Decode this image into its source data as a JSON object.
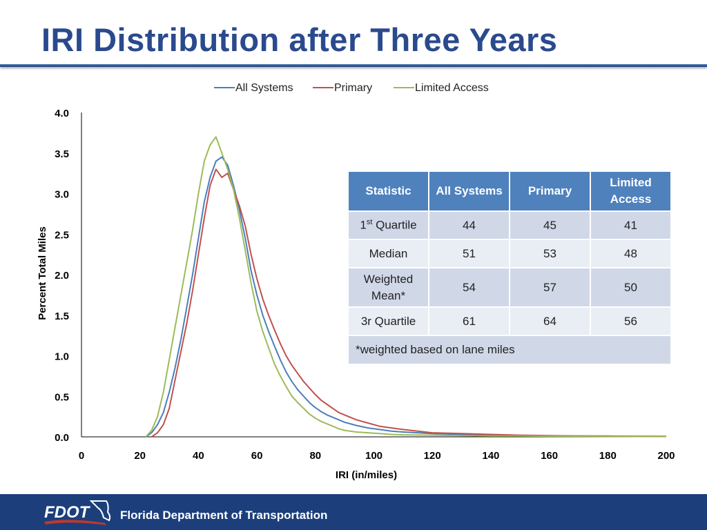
{
  "slide": {
    "title": "IRI Distribution after Three Years",
    "footer": "Florida Department of Transportation",
    "logo_text": "FDOT"
  },
  "colors": {
    "title": "#2a4a8d",
    "footer_bg": "#1c3f7c",
    "table_header": "#4f81bd",
    "table_row_odd": "#d0d8e8",
    "table_row_even": "#e9edf4"
  },
  "chart_data": {
    "type": "line",
    "title": "",
    "xlabel": "IRI (in/miles)",
    "ylabel": "Percent Total Miles",
    "xlim": [
      0,
      200
    ],
    "ylim": [
      0,
      4.0
    ],
    "xticks": [
      "0",
      "20",
      "40",
      "60",
      "80",
      "100",
      "120",
      "140",
      "160",
      "180",
      "200"
    ],
    "yticks": [
      "0.0",
      "0.5",
      "1.0",
      "1.5",
      "2.0",
      "2.5",
      "3.0",
      "3.5",
      "4.0"
    ],
    "grid": false,
    "legend": "top-center",
    "series": [
      {
        "name": "All Systems",
        "color": "#4a7ebb",
        "x": [
          22,
          24,
          26,
          28,
          30,
          32,
          34,
          36,
          38,
          40,
          42,
          44,
          46,
          48,
          50,
          52,
          54,
          56,
          58,
          60,
          62,
          64,
          66,
          68,
          70,
          72,
          74,
          76,
          78,
          80,
          82,
          84,
          86,
          88,
          90,
          94,
          98,
          102,
          106,
          110,
          115,
          120,
          130,
          140,
          150,
          160,
          170,
          180,
          190,
          200
        ],
        "y": [
          0.0,
          0.05,
          0.15,
          0.3,
          0.55,
          0.85,
          1.2,
          1.6,
          2.0,
          2.45,
          2.9,
          3.2,
          3.4,
          3.45,
          3.35,
          3.1,
          2.8,
          2.45,
          2.05,
          1.75,
          1.5,
          1.3,
          1.12,
          0.95,
          0.8,
          0.68,
          0.58,
          0.5,
          0.42,
          0.36,
          0.31,
          0.27,
          0.24,
          0.21,
          0.18,
          0.14,
          0.11,
          0.09,
          0.07,
          0.06,
          0.05,
          0.04,
          0.03,
          0.02,
          0.015,
          0.01,
          0.01,
          0.008,
          0.006,
          0.005
        ]
      },
      {
        "name": "Primary",
        "color": "#c0504d",
        "x": [
          24,
          26,
          28,
          30,
          32,
          34,
          36,
          38,
          40,
          42,
          44,
          46,
          48,
          50,
          52,
          54,
          56,
          58,
          60,
          62,
          64,
          66,
          68,
          70,
          72,
          74,
          76,
          78,
          80,
          82,
          84,
          86,
          88,
          90,
          94,
          98,
          102,
          106,
          110,
          115,
          120,
          130,
          140,
          150,
          160,
          170,
          180,
          190,
          200
        ],
        "y": [
          0.0,
          0.05,
          0.15,
          0.35,
          0.7,
          1.05,
          1.4,
          1.8,
          2.25,
          2.7,
          3.1,
          3.3,
          3.2,
          3.25,
          3.05,
          2.85,
          2.6,
          2.25,
          1.95,
          1.7,
          1.5,
          1.32,
          1.15,
          1.0,
          0.88,
          0.78,
          0.68,
          0.6,
          0.52,
          0.45,
          0.4,
          0.35,
          0.3,
          0.27,
          0.21,
          0.17,
          0.13,
          0.11,
          0.09,
          0.07,
          0.05,
          0.04,
          0.03,
          0.02,
          0.015,
          0.01,
          0.01,
          0.008,
          0.006
        ]
      },
      {
        "name": "Limited Access",
        "color": "#9bbb59",
        "x": [
          22,
          24,
          26,
          28,
          30,
          32,
          34,
          36,
          38,
          40,
          42,
          44,
          46,
          48,
          50,
          52,
          54,
          56,
          58,
          60,
          62,
          64,
          66,
          68,
          70,
          72,
          74,
          76,
          78,
          80,
          82,
          84,
          86,
          88,
          90,
          94,
          98,
          102,
          106,
          110,
          120,
          130,
          140,
          150,
          160,
          170,
          180,
          190,
          200
        ],
        "y": [
          0.0,
          0.08,
          0.25,
          0.55,
          0.95,
          1.35,
          1.75,
          2.15,
          2.55,
          3.0,
          3.4,
          3.6,
          3.7,
          3.5,
          3.3,
          3.05,
          2.7,
          2.3,
          1.9,
          1.55,
          1.3,
          1.1,
          0.9,
          0.75,
          0.62,
          0.5,
          0.42,
          0.35,
          0.28,
          0.23,
          0.19,
          0.16,
          0.13,
          0.1,
          0.08,
          0.06,
          0.05,
          0.04,
          0.03,
          0.025,
          0.02,
          0.015,
          0.01,
          0.01,
          0.008,
          0.006,
          0.005,
          0.004,
          0.003
        ]
      }
    ]
  },
  "stats_table": {
    "headers": [
      "Statistic",
      "All Systems",
      "Primary",
      "Limited Access"
    ],
    "rows": [
      {
        "label": "1",
        "label_sup": "st",
        "label_rest": " Quartile",
        "values": [
          "44",
          "45",
          "41"
        ]
      },
      {
        "label": "Median",
        "values": [
          "51",
          "53",
          "48"
        ]
      },
      {
        "label": "Weighted Mean*",
        "values": [
          "54",
          "57",
          "50"
        ]
      },
      {
        "label": "3r Quartile",
        "values": [
          "61",
          "64",
          "56"
        ]
      }
    ],
    "note": "*weighted based on lane miles"
  }
}
